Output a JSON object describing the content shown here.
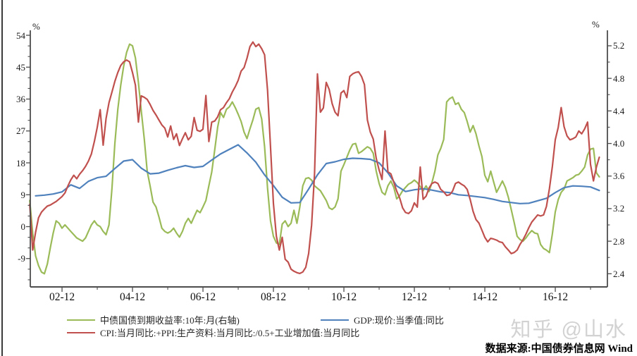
{
  "percent_left": "%",
  "percent_right": "%",
  "watermark": "知乎 @山水",
  "source": "数据来源:中国债券信息网 Wind",
  "chart_data": {
    "type": "line",
    "title": "",
    "grid": false,
    "legend_position": "bottom",
    "x_axis": {
      "start_month": "2002-01",
      "end_month": "2018-03",
      "tick_labels": [
        "02-12",
        "04-12",
        "06-12",
        "08-12",
        "10-12",
        "12-12",
        "14-12",
        "16-12"
      ],
      "minor_tick_months": [
        "03-12",
        "05-12",
        "07-12",
        "09-12",
        "11-12",
        "13-12",
        "15-12",
        "17-12"
      ]
    },
    "left_axis": {
      "unit": "%",
      "ticks": [
        "54",
        "45",
        "36",
        "27",
        "18",
        "9",
        "0",
        "-9"
      ],
      "tick_values": [
        54,
        45,
        36,
        27,
        18,
        9,
        0,
        -9
      ],
      "minor_step": 3,
      "range": [
        -17.0,
        55.4
      ]
    },
    "right_axis": {
      "unit": "%",
      "ticks": [
        "5.2",
        "4.8",
        "4.4",
        "4.0",
        "3.6",
        "3.2",
        "2.8",
        "2.4"
      ],
      "tick_values": [
        5.2,
        4.8,
        4.4,
        4.0,
        3.6,
        3.2,
        2.8,
        2.4
      ],
      "minor_step": 0.2,
      "range": [
        2.24,
        5.39
      ]
    },
    "series": [
      {
        "name": "中债国债到期收益率:10年:月(右轴)",
        "axis": "right",
        "color": "#9bbb59",
        "frequency": "monthly",
        "values": [
          3.3,
          2.9,
          2.62,
          2.5,
          2.42,
          2.4,
          2.52,
          2.72,
          2.9,
          3.05,
          3.02,
          2.96,
          3.0,
          2.96,
          2.92,
          2.88,
          2.84,
          2.82,
          2.8,
          2.84,
          2.92,
          3.0,
          3.05,
          3.0,
          2.98,
          2.92,
          2.88,
          3.0,
          3.45,
          4.0,
          4.42,
          4.72,
          4.95,
          5.12,
          5.22,
          5.2,
          5.05,
          4.75,
          4.4,
          4.06,
          3.66,
          3.48,
          3.28,
          3.22,
          3.1,
          2.96,
          2.92,
          2.9,
          2.92,
          2.96,
          2.9,
          2.85,
          2.92,
          3.02,
          3.08,
          3.02,
          3.1,
          3.18,
          3.15,
          3.22,
          3.3,
          3.48,
          3.65,
          3.92,
          4.2,
          4.38,
          4.32,
          4.42,
          4.45,
          4.51,
          4.44,
          4.36,
          4.27,
          4.14,
          4.06,
          4.18,
          4.29,
          4.42,
          4.44,
          4.3,
          3.96,
          3.45,
          3.05,
          2.86,
          2.78,
          2.76,
          3.01,
          3.05,
          2.98,
          3.02,
          3.18,
          3.02,
          3.22,
          3.48,
          3.57,
          3.58,
          3.55,
          3.48,
          3.45,
          3.42,
          3.36,
          3.3,
          3.21,
          3.19,
          3.22,
          3.32,
          3.66,
          3.74,
          3.83,
          3.92,
          3.99,
          4.0,
          3.88,
          3.9,
          3.93,
          3.96,
          3.94,
          3.88,
          3.66,
          3.51,
          3.4,
          3.37,
          3.48,
          3.54,
          3.46,
          3.32,
          3.36,
          3.42,
          3.46,
          3.5,
          3.52,
          3.55,
          3.52,
          3.47,
          3.42,
          3.48,
          3.41,
          3.52,
          3.66,
          3.86,
          3.94,
          4.05,
          4.51,
          4.55,
          4.57,
          4.48,
          4.5,
          4.42,
          4.38,
          4.27,
          4.14,
          4.22,
          4.12,
          3.97,
          3.84,
          3.61,
          3.53,
          3.66,
          3.53,
          3.4,
          3.47,
          3.54,
          3.46,
          3.34,
          3.19,
          3.03,
          2.86,
          2.82,
          2.8,
          2.84,
          2.89,
          2.93,
          2.9,
          2.89,
          2.76,
          2.71,
          2.69,
          2.66,
          2.89,
          3.16,
          3.31,
          3.4,
          3.44,
          3.54,
          3.56,
          3.58,
          3.61,
          3.62,
          3.66,
          3.71,
          3.86,
          3.93,
          3.94,
          3.64,
          3.59
        ]
      },
      {
        "name": "CPI:当月同比:+PPI:生产资料:当月同比:/0.5+工业增加值:当月同比",
        "axis": "left",
        "color": "#c0504d",
        "frequency": "monthly",
        "values": [
          6.3,
          -6.6,
          -1.6,
          2.5,
          4.1,
          5.0,
          5.8,
          6.1,
          6.6,
          7.1,
          7.8,
          8.5,
          9.5,
          11.5,
          13.2,
          14.5,
          13.5,
          14.8,
          15.8,
          17.0,
          18.5,
          20.5,
          24.0,
          28.0,
          33.0,
          23.0,
          30.5,
          35.0,
          38.0,
          41.0,
          43.5,
          45.5,
          46.5,
          47.0,
          46.5,
          43.5,
          39.9,
          29.5,
          36.9,
          36.5,
          35.9,
          34.5,
          32.8,
          31.5,
          30.1,
          28.7,
          27.8,
          25.3,
          28.4,
          24.6,
          26.2,
          22.9,
          24.8,
          26.5,
          24.5,
          25.5,
          30.8,
          27.2,
          26.9,
          27.5,
          37.0,
          24.0,
          29.5,
          29.8,
          31.0,
          33.0,
          33.6,
          35.0,
          36.1,
          38.0,
          39.5,
          41.3,
          43.9,
          44.9,
          47.5,
          50.8,
          52.1,
          50.8,
          51.5,
          50.2,
          48.5,
          38.5,
          22.5,
          6.6,
          -2.7,
          -6.6,
          -3.0,
          -9.2,
          -10.0,
          -12.0,
          -12.6,
          -13.0,
          -13.2,
          -12.8,
          -11.5,
          -7.6,
          0.4,
          15.0,
          43.1,
          32.3,
          33.5,
          40.7,
          38.7,
          34.7,
          32.3,
          31.3,
          37.7,
          38.4,
          36.4,
          42.4,
          43.1,
          43.5,
          43.7,
          42.4,
          40.1,
          30.1,
          26.7,
          24.7,
          19.3,
          16.0,
          13.3,
          27.0,
          15.5,
          14.9,
          12.5,
          10.0,
          8.1,
          5.3,
          4.0,
          3.7,
          4.5,
          6.7,
          5.5,
          16.8,
          7.7,
          8.6,
          10.9,
          12.2,
          12.6,
          12.2,
          10.5,
          9.8,
          8.8,
          9.0,
          10.0,
          12.2,
          12.6,
          12.0,
          11.5,
          10.5,
          7.7,
          4.3,
          2.0,
          1.0,
          -1.0,
          -3.0,
          -4.3,
          -3.3,
          -3.5,
          -3.8,
          -4.3,
          -4.5,
          -5.7,
          -6.6,
          -7.6,
          -7.3,
          -6.6,
          -5.0,
          -3.7,
          -2.1,
          -0.3,
          1.3,
          2.3,
          3.3,
          3.0,
          3.3,
          5.7,
          10.7,
          17.0,
          24.5,
          28.0,
          33.6,
          28.2,
          25.6,
          24.5,
          24.8,
          25.3,
          27.0,
          26.2,
          27.6,
          29.5,
          17.6,
          12.9,
          16.8,
          19.6
        ]
      },
      {
        "name": "GDP:现价:当季值:同比",
        "axis": "left",
        "color": "#4f81bd",
        "frequency": "quarterly",
        "values": [
          8.7,
          8.9,
          9.2,
          9.8,
          11.8,
          10.8,
          12.8,
          13.8,
          14.2,
          16.4,
          18.5,
          18.9,
          16.5,
          14.9,
          15.1,
          15.9,
          16.6,
          17.2,
          16.7,
          17.0,
          18.8,
          20.5,
          21.8,
          23.1,
          20.8,
          18.2,
          14.6,
          11.6,
          8.3,
          6.7,
          6.8,
          10.6,
          14.6,
          17.8,
          18.3,
          19.0,
          19.3,
          19.2,
          19.0,
          18.0,
          15.2,
          11.5,
          9.9,
          10.4,
          10.7,
          10.3,
          9.8,
          9.6,
          9.0,
          8.8,
          8.5,
          8.2,
          7.7,
          7.1,
          6.8,
          6.5,
          6.6,
          7.3,
          8.0,
          9.6,
          11.0,
          11.5,
          11.4,
          11.2,
          10.2
        ]
      }
    ]
  }
}
